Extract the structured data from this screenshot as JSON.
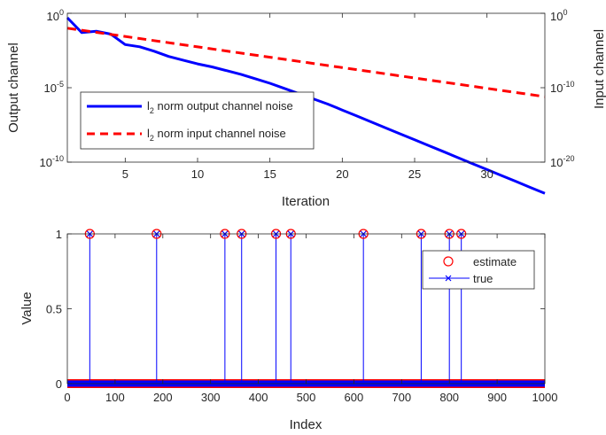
{
  "chart_data": [
    {
      "type": "line",
      "xlabel": "Iteration",
      "ylabel_left": "Output channel",
      "ylabel_right": "Input channel",
      "xlim": [
        1,
        34
      ],
      "xticks": [
        5,
        10,
        15,
        20,
        25,
        30
      ],
      "ylim_left_log10": [
        -10,
        0
      ],
      "ylim_right_log10": [
        -20,
        0
      ],
      "yscale": "log",
      "left_tick_labels": [
        "10^0",
        "10^-5",
        "10^-10"
      ],
      "right_tick_labels": [
        "10^0",
        "10^-10",
        "10^-20"
      ],
      "legend_position": "lower-left",
      "series": [
        {
          "name": "l2 norm output channel noise",
          "legend_main": "l",
          "legend_sub": "2",
          "legend_rest": " norm output channel noise",
          "axis": "left",
          "color": "#0000ff",
          "style": "solid",
          "x": [
            1,
            2,
            3,
            4,
            5,
            6,
            7,
            8,
            9,
            10,
            11,
            12,
            13,
            14,
            15,
            16,
            17,
            18,
            19,
            20,
            21,
            22,
            23,
            24,
            25,
            26,
            27,
            28,
            29,
            30,
            31,
            32,
            33,
            34
          ],
          "log10_y": [
            -0.3,
            -1.3,
            -1.2,
            -1.4,
            -2.1,
            -2.25,
            -2.55,
            -2.9,
            -3.15,
            -3.4,
            -3.6,
            -3.85,
            -4.1,
            -4.4,
            -4.7,
            -5.05,
            -5.4,
            -5.75,
            -6.1,
            -6.5,
            -6.9,
            -7.3,
            -7.7,
            -8.1,
            -8.5,
            -8.9,
            -9.3,
            -9.7,
            -10.1,
            -10.5,
            -10.9,
            -11.3,
            -11.7,
            -12.1
          ]
        },
        {
          "name": "l2 norm input channel noise",
          "legend_main": "l",
          "legend_sub": "2",
          "legend_rest": " norm input channel noise",
          "axis": "right",
          "color": "#ff0000",
          "style": "dashed",
          "x": [
            1,
            34
          ],
          "log10_y": [
            -2.0,
            -11.2
          ]
        }
      ]
    },
    {
      "type": "scatter",
      "xlabel": "Index",
      "ylabel": "Value",
      "xlim": [
        0,
        1000
      ],
      "ylim": [
        0,
        1
      ],
      "xticks": [
        0,
        100,
        200,
        300,
        400,
        500,
        600,
        700,
        800,
        900,
        1000
      ],
      "yticks": [
        0,
        0.5,
        1
      ],
      "legend_position": "upper-right",
      "series": [
        {
          "name": "estimate",
          "marker": "circle",
          "color": "#ff0000"
        },
        {
          "name": "true",
          "marker": "x-stem",
          "color": "#0000ff"
        }
      ],
      "spikes": {
        "indices": [
          47,
          187,
          330,
          365,
          437,
          468,
          620,
          741,
          800,
          825
        ],
        "value": 1
      },
      "n_points": 1000,
      "baseline_value": 0
    }
  ]
}
